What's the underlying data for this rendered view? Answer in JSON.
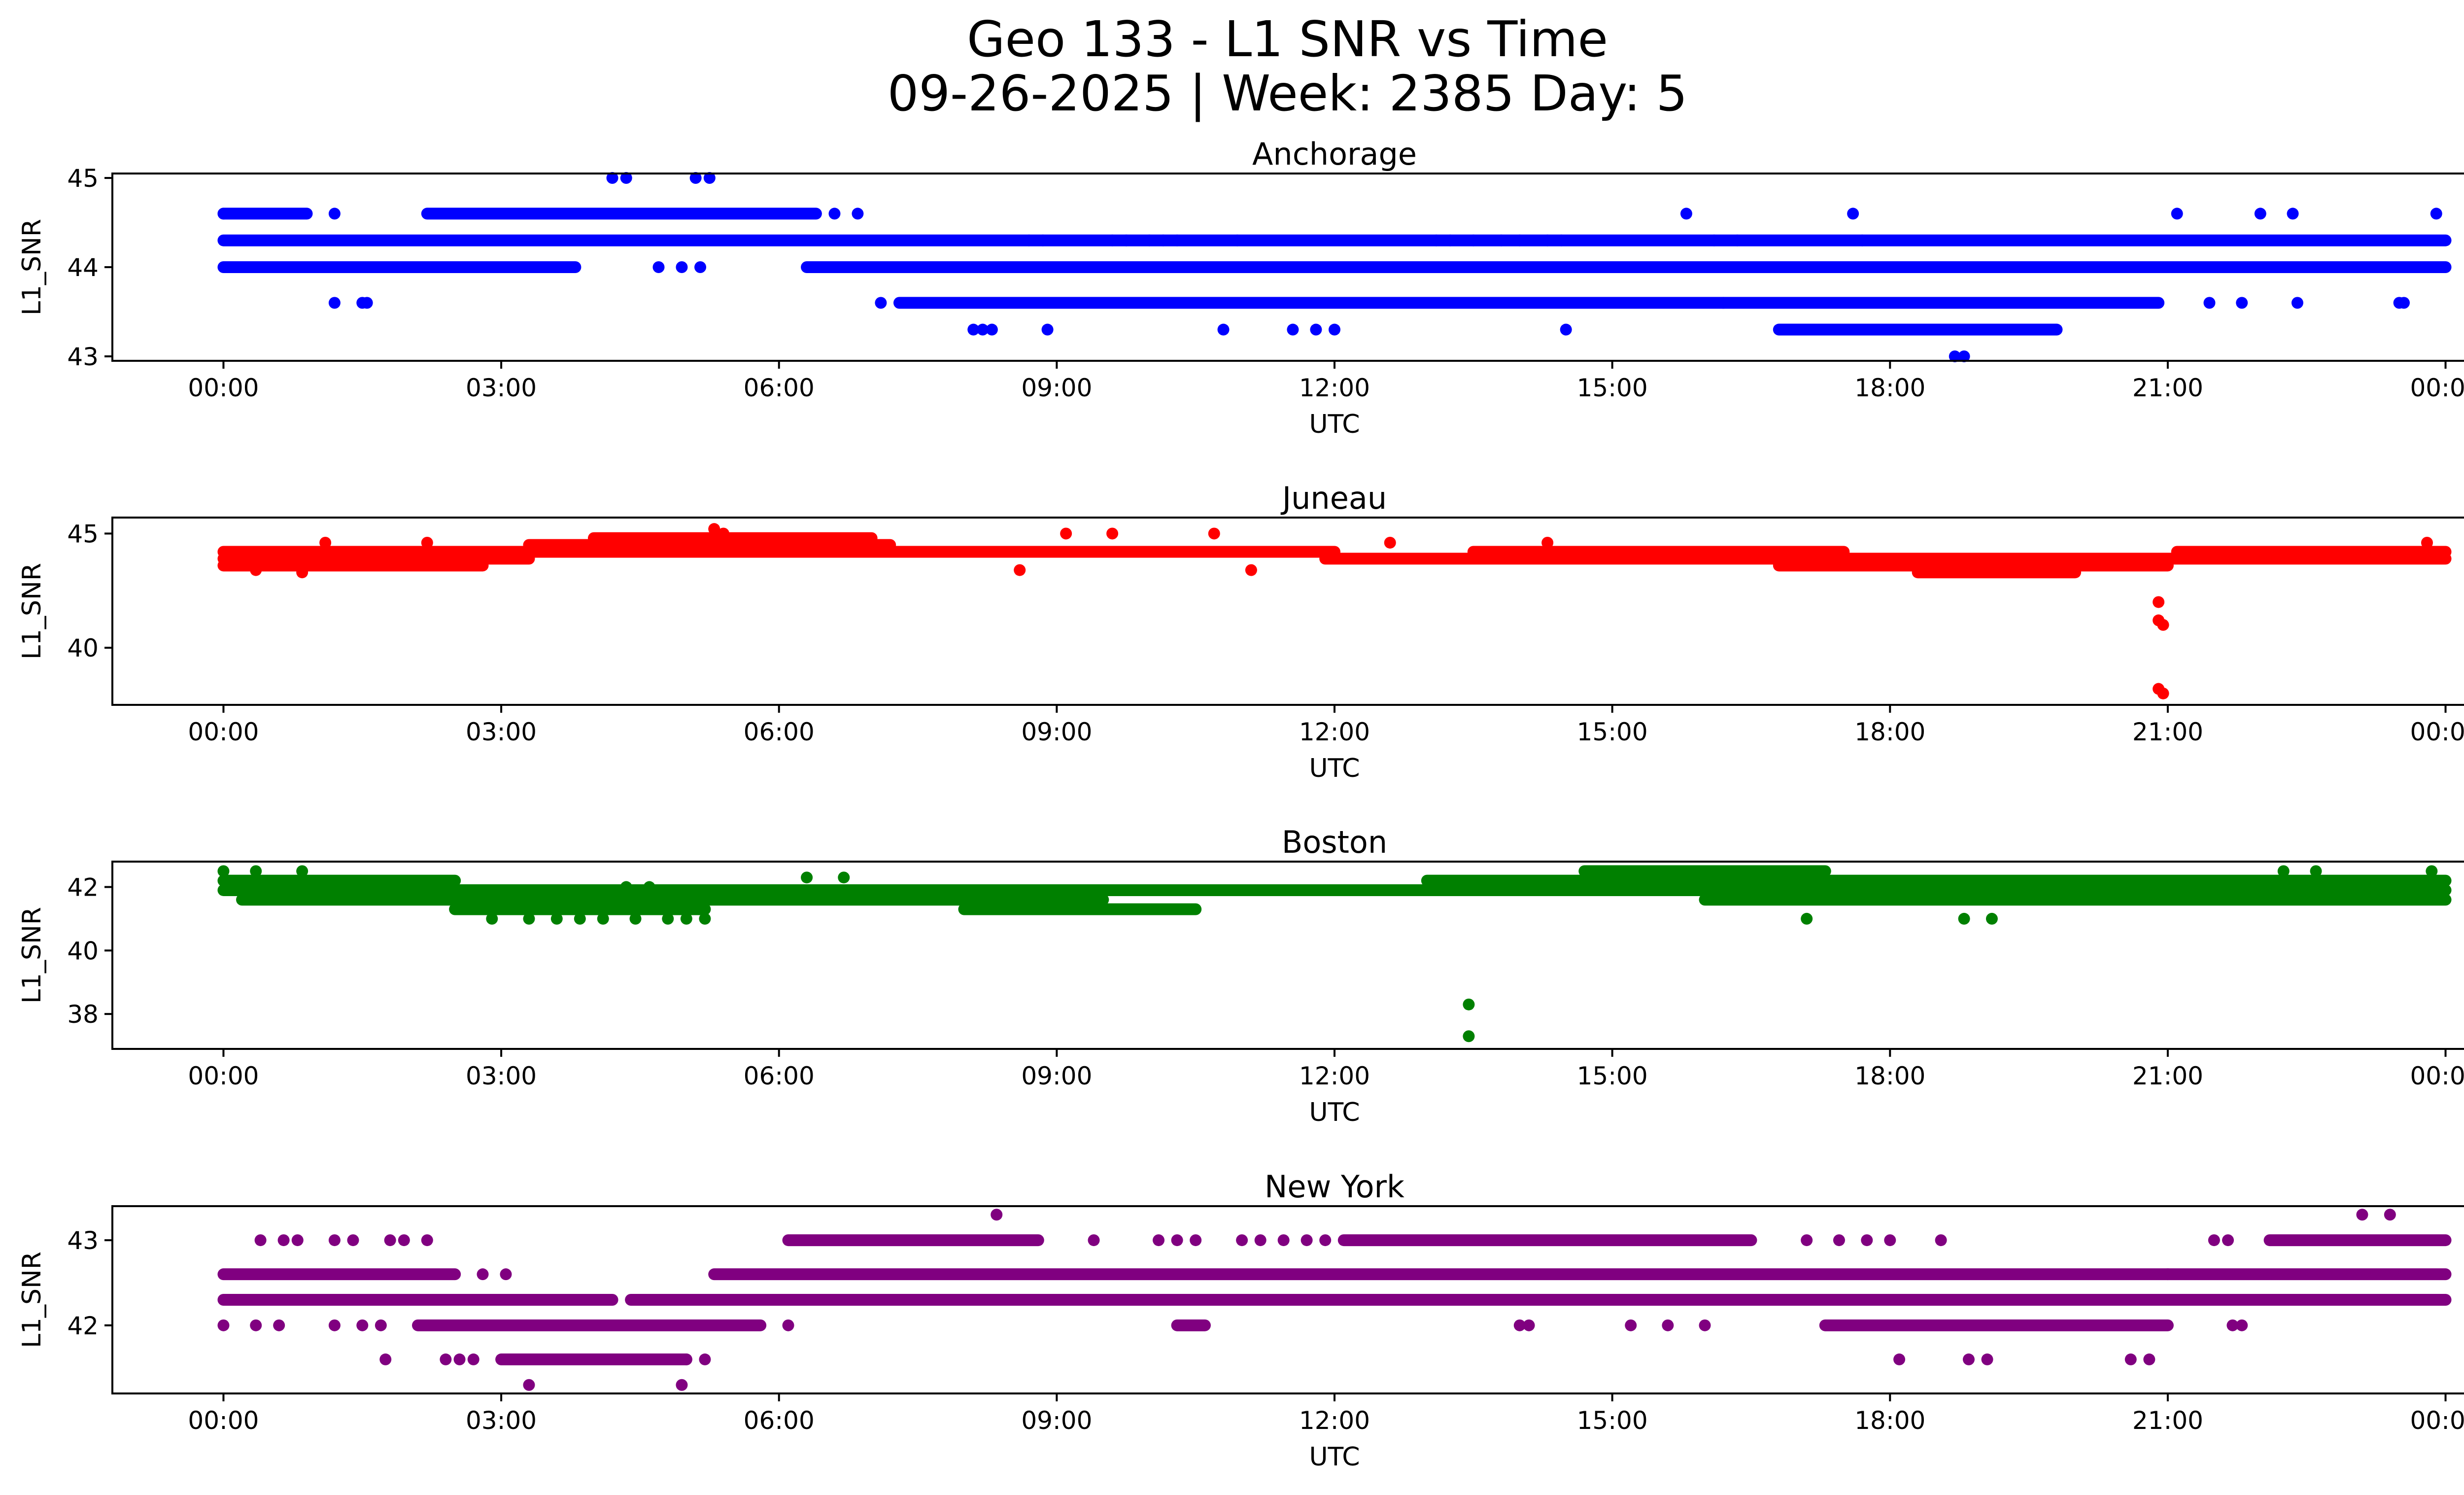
{
  "figure": {
    "title_line1": "Geo 133 - L1 SNR vs Time",
    "title_line2": "09-26-2025 | Week: 2385 Day: 5"
  },
  "chart_data": [
    {
      "type": "scatter",
      "title": "Anchorage",
      "xlabel": "UTC",
      "ylabel": "L1_SNR",
      "color": "#0000ff",
      "xlim": [
        -1.2,
        25.2
      ],
      "ylim": [
        42.95,
        45.05
      ],
      "xticks": [
        "00:00",
        "03:00",
        "06:00",
        "09:00",
        "12:00",
        "15:00",
        "18:00",
        "21:00",
        "00:00"
      ],
      "yticks": [
        43,
        44,
        45
      ],
      "series": [
        {
          "level": 44.3,
          "segments": [
            [
              0,
              24
            ]
          ]
        },
        {
          "level": 44.0,
          "segments": [
            [
              0,
              3.8
            ],
            [
              6.3,
              24
            ]
          ]
        },
        {
          "level": 44.6,
          "segments": [
            [
              0,
              0.9
            ],
            [
              2.2,
              6.4
            ]
          ]
        },
        {
          "level": 43.6,
          "segments": [
            [
              7.3,
              20.9
            ]
          ]
        },
        {
          "level": 43.3,
          "segments": [
            [
              16.8,
              19.8
            ]
          ]
        }
      ],
      "points": [
        {
          "x": 1.2,
          "y": 43.6
        },
        {
          "x": 1.5,
          "y": 43.6
        },
        {
          "x": 1.55,
          "y": 43.6
        },
        {
          "x": 0.0,
          "y": 44.6
        },
        {
          "x": 1.2,
          "y": 44.6
        },
        {
          "x": 4.2,
          "y": 45.0
        },
        {
          "x": 4.35,
          "y": 45.0
        },
        {
          "x": 5.1,
          "y": 45.0
        },
        {
          "x": 5.25,
          "y": 45.0
        },
        {
          "x": 4.7,
          "y": 44.0
        },
        {
          "x": 4.95,
          "y": 44.0
        },
        {
          "x": 5.15,
          "y": 44.0
        },
        {
          "x": 6.6,
          "y": 44.6
        },
        {
          "x": 6.85,
          "y": 44.6
        },
        {
          "x": 7.1,
          "y": 43.6
        },
        {
          "x": 8.1,
          "y": 43.3
        },
        {
          "x": 8.2,
          "y": 43.3
        },
        {
          "x": 8.3,
          "y": 43.3
        },
        {
          "x": 8.7,
          "y": 44.3
        },
        {
          "x": 8.85,
          "y": 44.3
        },
        {
          "x": 8.9,
          "y": 43.3
        },
        {
          "x": 9.6,
          "y": 44.3
        },
        {
          "x": 9.75,
          "y": 44.3
        },
        {
          "x": 10.0,
          "y": 44.3
        },
        {
          "x": 10.15,
          "y": 44.3
        },
        {
          "x": 10.3,
          "y": 44.3
        },
        {
          "x": 10.8,
          "y": 43.3
        },
        {
          "x": 10.95,
          "y": 44.3
        },
        {
          "x": 11.55,
          "y": 43.3
        },
        {
          "x": 11.8,
          "y": 43.3
        },
        {
          "x": 12.0,
          "y": 43.3
        },
        {
          "x": 13.1,
          "y": 44.3
        },
        {
          "x": 13.25,
          "y": 44.3
        },
        {
          "x": 13.5,
          "y": 44.3
        },
        {
          "x": 13.8,
          "y": 44.3
        },
        {
          "x": 14.0,
          "y": 44.3
        },
        {
          "x": 14.3,
          "y": 44.3
        },
        {
          "x": 14.45,
          "y": 44.3
        },
        {
          "x": 14.5,
          "y": 43.3
        },
        {
          "x": 15.8,
          "y": 44.6
        },
        {
          "x": 16.1,
          "y": 44.3
        },
        {
          "x": 16.35,
          "y": 44.3
        },
        {
          "x": 16.2,
          "y": 43.6
        },
        {
          "x": 17.6,
          "y": 44.6
        },
        {
          "x": 17.7,
          "y": 44.3
        },
        {
          "x": 17.45,
          "y": 44.0
        },
        {
          "x": 18.5,
          "y": 44.0
        },
        {
          "x": 18.7,
          "y": 43.0
        },
        {
          "x": 18.8,
          "y": 43.0
        },
        {
          "x": 18.9,
          "y": 44.0
        },
        {
          "x": 19.0,
          "y": 44.0
        },
        {
          "x": 19.2,
          "y": 44.0
        },
        {
          "x": 19.35,
          "y": 44.0
        },
        {
          "x": 21.1,
          "y": 44.6
        },
        {
          "x": 21.45,
          "y": 43.6
        },
        {
          "x": 21.8,
          "y": 43.6
        },
        {
          "x": 22.0,
          "y": 44.6
        },
        {
          "x": 22.35,
          "y": 44.6
        },
        {
          "x": 22.4,
          "y": 43.6
        },
        {
          "x": 23.5,
          "y": 43.6
        },
        {
          "x": 23.55,
          "y": 43.6
        },
        {
          "x": 23.9,
          "y": 44.6
        }
      ]
    },
    {
      "type": "scatter",
      "title": "Juneau",
      "xlabel": "UTC",
      "ylabel": "L1_SNR",
      "color": "#ff0000",
      "xlim": [
        -1.2,
        25.2
      ],
      "ylim": [
        37.5,
        45.7
      ],
      "xticks": [
        "00:00",
        "03:00",
        "06:00",
        "09:00",
        "12:00",
        "15:00",
        "18:00",
        "21:00",
        "00:00"
      ],
      "yticks": [
        40,
        45
      ],
      "series": [
        {
          "level": 43.9,
          "segments": [
            [
              0,
              3.3
            ],
            [
              11.9,
              24
            ]
          ]
        },
        {
          "level": 44.2,
          "segments": [
            [
              0,
              3.3
            ],
            [
              3.3,
              12
            ],
            [
              13.5,
              17.5
            ],
            [
              21.1,
              24
            ]
          ]
        },
        {
          "level": 44.5,
          "segments": [
            [
              3.3,
              7.2
            ]
          ]
        },
        {
          "level": 44.8,
          "segments": [
            [
              4.0,
              7.0
            ]
          ]
        },
        {
          "level": 43.6,
          "segments": [
            [
              0,
              2.8
            ],
            [
              16.8,
              21.0
            ]
          ]
        },
        {
          "level": 43.3,
          "segments": [
            [
              18.3,
              20.0
            ]
          ]
        }
      ],
      "points": [
        {
          "x": 0.35,
          "y": 43.4
        },
        {
          "x": 0.85,
          "y": 43.3
        },
        {
          "x": 1.1,
          "y": 44.6
        },
        {
          "x": 2.2,
          "y": 44.6
        },
        {
          "x": 5.3,
          "y": 45.2
        },
        {
          "x": 5.4,
          "y": 45.0
        },
        {
          "x": 8.6,
          "y": 43.4
        },
        {
          "x": 9.1,
          "y": 45.0
        },
        {
          "x": 9.6,
          "y": 45.0
        },
        {
          "x": 10.7,
          "y": 45.0
        },
        {
          "x": 11.1,
          "y": 43.4
        },
        {
          "x": 12.6,
          "y": 44.6
        },
        {
          "x": 14.3,
          "y": 44.6
        },
        {
          "x": 20.9,
          "y": 42.0
        },
        {
          "x": 20.9,
          "y": 41.2
        },
        {
          "x": 20.95,
          "y": 41.0
        },
        {
          "x": 20.9,
          "y": 38.2
        },
        {
          "x": 20.95,
          "y": 38.0
        },
        {
          "x": 23.8,
          "y": 44.6
        }
      ]
    },
    {
      "type": "scatter",
      "title": "Boston",
      "xlabel": "UTC",
      "ylabel": "L1_SNR",
      "color": "#008000",
      "xlim": [
        -1.2,
        25.2
      ],
      "ylim": [
        36.9,
        42.8
      ],
      "xticks": [
        "00:00",
        "03:00",
        "06:00",
        "09:00",
        "12:00",
        "15:00",
        "18:00",
        "21:00",
        "00:00"
      ],
      "yticks": [
        38,
        40,
        42
      ],
      "series": [
        {
          "level": 41.9,
          "segments": [
            [
              0,
              24
            ]
          ]
        },
        {
          "level": 42.2,
          "segments": [
            [
              0,
              2.5
            ],
            [
              13.0,
              24
            ]
          ]
        },
        {
          "level": 41.6,
          "segments": [
            [
              0.2,
              3.0
            ],
            [
              2.5,
              9.5
            ],
            [
              16.0,
              24
            ]
          ]
        },
        {
          "level": 41.3,
          "segments": [
            [
              2.5,
              5.2
            ],
            [
              8.0,
              10.5
            ]
          ]
        },
        {
          "level": 42.5,
          "segments": [
            [
              14.7,
              17.3
            ]
          ]
        }
      ],
      "points": [
        {
          "x": 0.0,
          "y": 42.5
        },
        {
          "x": 0.35,
          "y": 42.5
        },
        {
          "x": 0.85,
          "y": 42.5
        },
        {
          "x": 2.9,
          "y": 41.0
        },
        {
          "x": 3.3,
          "y": 41.0
        },
        {
          "x": 3.6,
          "y": 41.0
        },
        {
          "x": 3.85,
          "y": 41.0
        },
        {
          "x": 4.1,
          "y": 41.0
        },
        {
          "x": 4.45,
          "y": 41.0
        },
        {
          "x": 4.8,
          "y": 41.0
        },
        {
          "x": 5.0,
          "y": 41.0
        },
        {
          "x": 5.2,
          "y": 41.0
        },
        {
          "x": 4.35,
          "y": 42.0
        },
        {
          "x": 4.6,
          "y": 42.0
        },
        {
          "x": 6.3,
          "y": 42.3
        },
        {
          "x": 6.7,
          "y": 42.3
        },
        {
          "x": 13.45,
          "y": 38.3
        },
        {
          "x": 13.45,
          "y": 37.3
        },
        {
          "x": 17.1,
          "y": 41.0
        },
        {
          "x": 18.8,
          "y": 41.0
        },
        {
          "x": 19.1,
          "y": 41.0
        },
        {
          "x": 22.25,
          "y": 42.5
        },
        {
          "x": 22.6,
          "y": 42.5
        },
        {
          "x": 23.85,
          "y": 42.5
        }
      ]
    },
    {
      "type": "scatter",
      "title": "New York",
      "xlabel": "UTC",
      "ylabel": "L1_SNR",
      "color": "#800080",
      "xlim": [
        -1.2,
        25.2
      ],
      "ylim": [
        41.2,
        43.4
      ],
      "xticks": [
        "00:00",
        "03:00",
        "06:00",
        "09:00",
        "12:00",
        "15:00",
        "18:00",
        "21:00",
        "00:00"
      ],
      "yticks": [
        42,
        43
      ],
      "series": [
        {
          "level": 42.3,
          "segments": [
            [
              0,
              4.2
            ],
            [
              4.4,
              24
            ]
          ]
        },
        {
          "level": 42.6,
          "segments": [
            [
              0,
              2.5
            ],
            [
              5.3,
              21.0
            ],
            [
              21.0,
              24
            ]
          ]
        },
        {
          "level": 42.0,
          "segments": [
            [
              2.1,
              5.8
            ],
            [
              10.3,
              10.6
            ],
            [
              17.3,
              21.0
            ]
          ]
        },
        {
          "level": 41.6,
          "segments": [
            [
              3.0,
              5.0
            ]
          ]
        },
        {
          "level": 43.0,
          "segments": [
            [
              6.1,
              8.8
            ],
            [
              12.1,
              16.5
            ],
            [
              22.1,
              24
            ]
          ]
        }
      ],
      "points": [
        {
          "x": 0.0,
          "y": 42.0
        },
        {
          "x": 0.35,
          "y": 42.0
        },
        {
          "x": 0.6,
          "y": 42.0
        },
        {
          "x": 1.2,
          "y": 42.0
        },
        {
          "x": 1.5,
          "y": 42.0
        },
        {
          "x": 1.7,
          "y": 42.0
        },
        {
          "x": 0.4,
          "y": 43.0
        },
        {
          "x": 0.65,
          "y": 43.0
        },
        {
          "x": 0.8,
          "y": 43.0
        },
        {
          "x": 1.2,
          "y": 43.0
        },
        {
          "x": 1.4,
          "y": 43.0
        },
        {
          "x": 1.8,
          "y": 43.0
        },
        {
          "x": 1.95,
          "y": 43.0
        },
        {
          "x": 2.2,
          "y": 43.0
        },
        {
          "x": 1.75,
          "y": 41.6
        },
        {
          "x": 2.4,
          "y": 41.6
        },
        {
          "x": 2.55,
          "y": 41.6
        },
        {
          "x": 2.7,
          "y": 41.6
        },
        {
          "x": 2.8,
          "y": 42.6
        },
        {
          "x": 3.05,
          "y": 42.6
        },
        {
          "x": 3.3,
          "y": 41.3
        },
        {
          "x": 4.95,
          "y": 41.3
        },
        {
          "x": 5.0,
          "y": 41.6
        },
        {
          "x": 5.2,
          "y": 41.6
        },
        {
          "x": 6.1,
          "y": 42.0
        },
        {
          "x": 8.35,
          "y": 43.3
        },
        {
          "x": 9.4,
          "y": 43.0
        },
        {
          "x": 10.1,
          "y": 43.0
        },
        {
          "x": 10.3,
          "y": 43.0
        },
        {
          "x": 10.5,
          "y": 43.0
        },
        {
          "x": 11.0,
          "y": 43.0
        },
        {
          "x": 11.2,
          "y": 43.0
        },
        {
          "x": 11.45,
          "y": 43.0
        },
        {
          "x": 11.7,
          "y": 43.0
        },
        {
          "x": 11.9,
          "y": 43.0
        },
        {
          "x": 14.0,
          "y": 42.0
        },
        {
          "x": 14.1,
          "y": 42.0
        },
        {
          "x": 15.2,
          "y": 42.0
        },
        {
          "x": 15.6,
          "y": 42.0
        },
        {
          "x": 16.0,
          "y": 42.0
        },
        {
          "x": 17.1,
          "y": 43.0
        },
        {
          "x": 17.45,
          "y": 43.0
        },
        {
          "x": 17.75,
          "y": 43.0
        },
        {
          "x": 18.0,
          "y": 43.0
        },
        {
          "x": 18.55,
          "y": 43.0
        },
        {
          "x": 18.1,
          "y": 41.6
        },
        {
          "x": 18.85,
          "y": 41.6
        },
        {
          "x": 19.05,
          "y": 41.6
        },
        {
          "x": 20.6,
          "y": 41.6
        },
        {
          "x": 20.8,
          "y": 41.6
        },
        {
          "x": 21.5,
          "y": 43.0
        },
        {
          "x": 21.65,
          "y": 43.0
        },
        {
          "x": 21.7,
          "y": 42.0
        },
        {
          "x": 21.8,
          "y": 42.0
        },
        {
          "x": 23.1,
          "y": 43.3
        },
        {
          "x": 23.4,
          "y": 43.3
        },
        {
          "x": 23.4,
          "y": 42.3
        }
      ]
    }
  ]
}
